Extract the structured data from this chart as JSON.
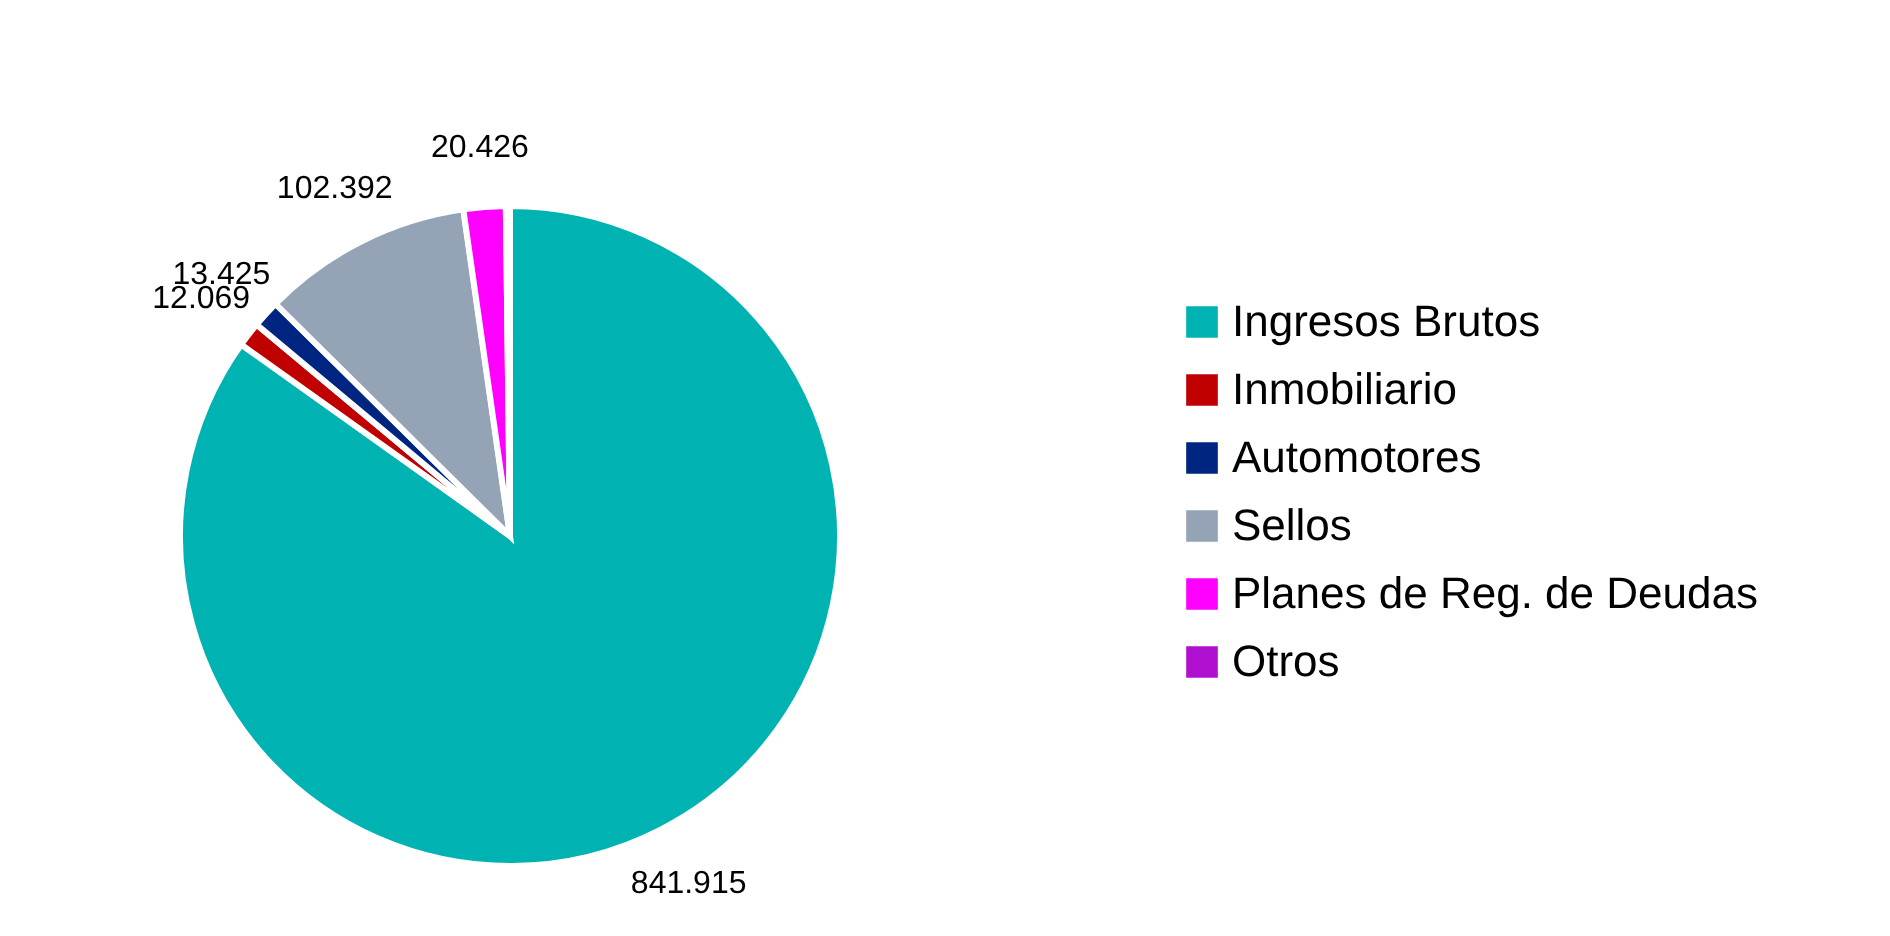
{
  "chart_data": {
    "type": "pie",
    "categories": [
      "Ingresos Brutos",
      "Inmobiliario",
      "Automotores",
      "Sellos",
      "Planes de Reg. de Deudas",
      "Otros"
    ],
    "values": [
      841.915,
      12.069,
      13.425,
      102.392,
      20.426,
      2
    ],
    "value_labels": [
      "841.915",
      "12.069",
      "13.425",
      "102.392",
      "20.426",
      null
    ],
    "colors": [
      "#00b3b3",
      "#c00000",
      "#002580",
      "#94a3b5",
      "#ff00ff",
      "#b010d0"
    ],
    "legend": "right"
  }
}
